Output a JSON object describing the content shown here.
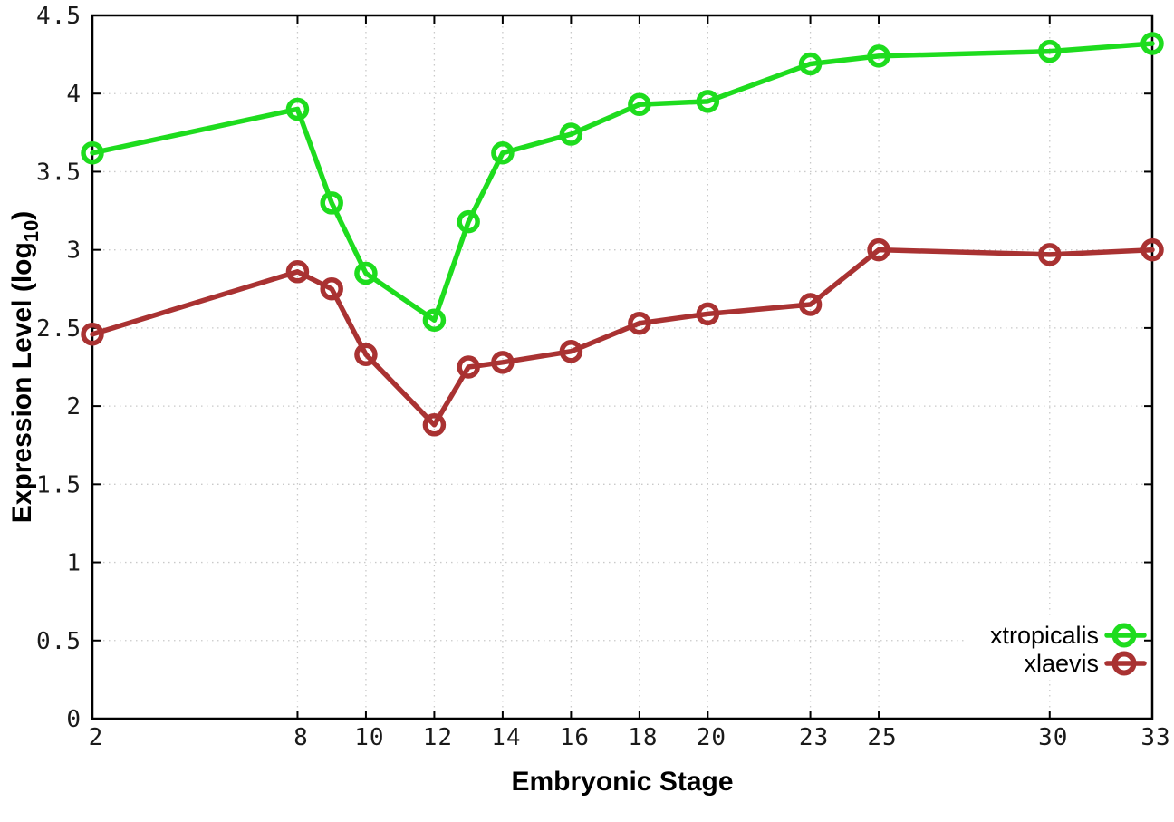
{
  "chart_data": {
    "type": "line",
    "x": [
      2,
      8,
      9,
      10,
      12,
      13,
      14,
      16,
      18,
      20,
      23,
      25,
      30,
      33
    ],
    "series": [
      {
        "name": "xtropicalis",
        "color": "#1edc1e",
        "values": [
          3.62,
          3.9,
          3.3,
          2.85,
          2.55,
          3.18,
          3.62,
          3.74,
          3.93,
          3.95,
          4.19,
          4.24,
          4.27,
          4.32
        ]
      },
      {
        "name": "xlaevis",
        "color": "#a93232",
        "values": [
          2.46,
          2.86,
          2.75,
          2.33,
          1.88,
          2.25,
          2.28,
          2.35,
          2.53,
          2.59,
          2.65,
          3.0,
          2.97,
          3.0
        ]
      }
    ],
    "xlabel": "Embryonic Stage",
    "ylabel": "Expression Level (log10)",
    "ylabel_parts": {
      "main": "Expression Level (log",
      "sub": "10",
      "end": ")"
    },
    "xlim": [
      2,
      33
    ],
    "ylim": [
      0,
      4.5
    ],
    "xticks": {
      "values": [
        2,
        8,
        10,
        12,
        14,
        16,
        18,
        20,
        23,
        25,
        30,
        33
      ],
      "labels": [
        "2",
        "8",
        "10",
        "12",
        "14",
        "16",
        "18",
        "20",
        "23",
        "25",
        "30",
        "33"
      ]
    },
    "yticks": {
      "values": [
        0,
        0.5,
        1,
        1.5,
        2,
        2.5,
        3,
        3.5,
        4,
        4.5
      ],
      "labels": [
        "0",
        "0.5",
        "1",
        "1.5",
        "2",
        "2.5",
        "3",
        "3.5",
        "4",
        "4.5"
      ]
    },
    "grid": true,
    "legend_position": "inside-right-bottom",
    "colors": {
      "background": "#ffffff",
      "border": "#000000",
      "grid": "#c9c9c9",
      "tick_text": "#1a1a1a"
    }
  }
}
